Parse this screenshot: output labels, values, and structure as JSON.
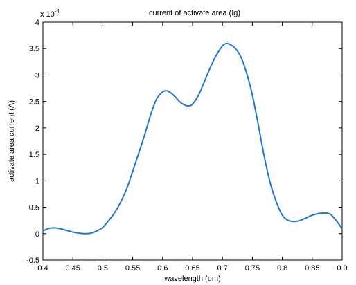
{
  "chart_data": {
    "type": "line",
    "title": "current of activate area (Ig)",
    "xlabel": "wavelength (um)",
    "ylabel": "activate area current (A)",
    "y_multiplier_base": "x 10",
    "y_multiplier_exp": "-4",
    "xlim": [
      0.4,
      0.9
    ],
    "ylim": [
      -0.5,
      4
    ],
    "xticks": [
      "0.4",
      "0.45",
      "0.5",
      "0.55",
      "0.6",
      "0.65",
      "0.7",
      "0.75",
      "0.8",
      "0.85",
      "0.9"
    ],
    "yticks": [
      "-0.5",
      "0",
      "0.5",
      "1",
      "1.5",
      "2",
      "2.5",
      "3",
      "3.5",
      "4"
    ],
    "grid": false,
    "series": [
      {
        "color": "#1f77d6",
        "x": [
          0.4,
          0.41,
          0.42,
          0.43,
          0.44,
          0.45,
          0.46,
          0.47,
          0.48,
          0.49,
          0.5,
          0.51,
          0.52,
          0.53,
          0.54,
          0.55,
          0.56,
          0.57,
          0.58,
          0.59,
          0.6,
          0.605,
          0.61,
          0.62,
          0.63,
          0.64,
          0.645,
          0.65,
          0.66,
          0.67,
          0.68,
          0.69,
          0.7,
          0.705,
          0.71,
          0.72,
          0.73,
          0.74,
          0.75,
          0.76,
          0.77,
          0.78,
          0.79,
          0.8,
          0.81,
          0.82,
          0.83,
          0.84,
          0.85,
          0.86,
          0.87,
          0.88,
          0.89,
          0.9
        ],
        "y": [
          0.05,
          0.1,
          0.11,
          0.09,
          0.06,
          0.03,
          0.01,
          0.0,
          0.01,
          0.05,
          0.12,
          0.25,
          0.4,
          0.6,
          0.85,
          1.18,
          1.52,
          1.87,
          2.25,
          2.55,
          2.68,
          2.7,
          2.69,
          2.6,
          2.48,
          2.42,
          2.42,
          2.45,
          2.62,
          2.88,
          3.15,
          3.38,
          3.55,
          3.59,
          3.59,
          3.52,
          3.36,
          3.05,
          2.62,
          2.05,
          1.45,
          0.95,
          0.6,
          0.35,
          0.25,
          0.23,
          0.25,
          0.3,
          0.35,
          0.38,
          0.39,
          0.37,
          0.25,
          0.09
        ]
      }
    ]
  }
}
